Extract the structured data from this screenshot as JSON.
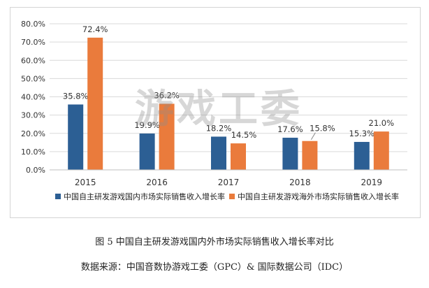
{
  "watermark": "游戏工委",
  "caption": "图 5  中国自主研发游戏国内外市场实际销售收入增长率对比",
  "source": "数据来源：中国音数协游戏工委（GPC）& 国际数据公司（IDC）",
  "colors": {
    "domestic": "#2c5f94",
    "overseas": "#ea7b3c",
    "grid": "#d9d9d9"
  },
  "chart_data": {
    "type": "bar",
    "title": "",
    "xlabel": "",
    "ylabel": "",
    "categories": [
      "2015",
      "2016",
      "2017",
      "2018",
      "2019"
    ],
    "ylim": [
      0,
      80
    ],
    "yticks": [
      0,
      10,
      20,
      30,
      40,
      50,
      60,
      70,
      80
    ],
    "ytick_labels": [
      "0.0%",
      "10.0%",
      "20.0%",
      "30.0%",
      "40.0%",
      "50.0%",
      "60.0%",
      "70.0%",
      "80.0%"
    ],
    "grid": true,
    "legend_position": "bottom",
    "series": [
      {
        "name": "中国自主研发游戏国内市场实际销售收入增长率",
        "values": [
          35.8,
          19.9,
          18.2,
          17.6,
          15.3
        ],
        "labels": [
          "35.8%",
          "19.9%",
          "18.2%",
          "17.6%",
          "15.3%"
        ]
      },
      {
        "name": "中国自主研发游戏海外市场实际销售收入增长率",
        "values": [
          72.4,
          36.2,
          14.5,
          15.8,
          21.0
        ],
        "labels": [
          "72.4%",
          "36.2%",
          "14.5%",
          "15.8%",
          "21.0%"
        ]
      }
    ]
  }
}
